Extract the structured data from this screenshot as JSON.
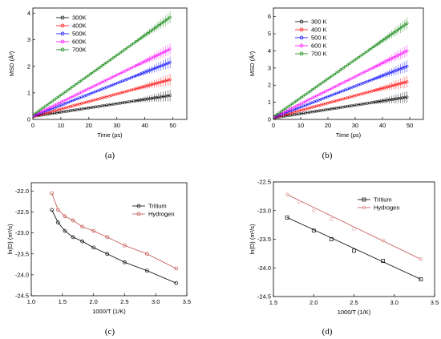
{
  "chart_data": [
    {
      "type": "line",
      "panel": "(a)",
      "xlabel": "Time (ps)",
      "ylabel": "MSD (Å²)",
      "xlim": [
        0,
        55
      ],
      "ylim": [
        0,
        4.2
      ],
      "xticks": [
        0,
        10,
        20,
        30,
        40,
        50
      ],
      "yticks": [
        0,
        1,
        2,
        3,
        4
      ],
      "legend_position": "top-left",
      "grid": false,
      "series": [
        {
          "name": "300K",
          "color": "#000000",
          "x0": 0.5,
          "x1": 49,
          "y0": 0.12,
          "y1": 0.9
        },
        {
          "name": "400K",
          "color": "#ff0000",
          "x0": 0.5,
          "x1": 49,
          "y0": 0.12,
          "y1": 1.5
        },
        {
          "name": "500K",
          "color": "#0000ff",
          "x0": 0.5,
          "x1": 49,
          "y0": 0.14,
          "y1": 2.15
        },
        {
          "name": "600K",
          "color": "#ff00ff",
          "x0": 0.5,
          "x1": 49,
          "y0": 0.16,
          "y1": 2.65
        },
        {
          "name": "700K",
          "color": "#008000",
          "x0": 0.5,
          "x1": 49,
          "y0": 0.2,
          "y1": 3.85
        }
      ]
    },
    {
      "type": "line",
      "panel": "(b)",
      "xlabel": "Time (ps)",
      "ylabel": "MSD (Å²)",
      "xlim": [
        0,
        55
      ],
      "ylim": [
        0,
        6.5
      ],
      "xticks": [
        0,
        10,
        20,
        30,
        40,
        50
      ],
      "yticks": [
        0,
        1,
        2,
        3,
        4,
        5,
        6
      ],
      "legend_position": "top-left",
      "grid": false,
      "series": [
        {
          "name": "300 K",
          "color": "#000000",
          "x0": 0.5,
          "x1": 49,
          "y0": 0.1,
          "y1": 1.3
        },
        {
          "name": "400 K",
          "color": "#ff0000",
          "x0": 0.5,
          "x1": 49,
          "y0": 0.12,
          "y1": 2.2
        },
        {
          "name": "500 K",
          "color": "#0000ff",
          "x0": 0.5,
          "x1": 49,
          "y0": 0.14,
          "y1": 3.1
        },
        {
          "name": "600 K",
          "color": "#ff00ff",
          "x0": 0.5,
          "x1": 49,
          "y0": 0.16,
          "y1": 4.0
        },
        {
          "name": "700 K",
          "color": "#008000",
          "x0": 0.5,
          "x1": 49,
          "y0": 0.2,
          "y1": 5.6
        }
      ]
    },
    {
      "type": "line",
      "panel": "(c)",
      "xlabel": "1000/T (1/K)",
      "ylabel": "ln(D) (m²/s)",
      "xlim": [
        1.0,
        3.5
      ],
      "ylim": [
        -24.5,
        -21.8
      ],
      "xticks": [
        1.0,
        1.5,
        2.0,
        2.5,
        3.0,
        3.5
      ],
      "xtick_labels": [
        "1.0",
        "1.5",
        "2.0",
        "2.5",
        "3.0",
        "3.5"
      ],
      "yticks": [
        -24.5,
        -24.0,
        -23.5,
        -23.0,
        -22.5,
        -22.0
      ],
      "ytick_labels": [
        "-24.5",
        "-24.0",
        "-23.5",
        "-23.0",
        "-22.5",
        "-22.0"
      ],
      "legend_position": "top-right",
      "grid": false,
      "series": [
        {
          "name": "Tritium",
          "color": "#000000",
          "marker": "circle",
          "x": [
            1.33,
            1.43,
            1.54,
            1.67,
            1.82,
            2.0,
            2.22,
            2.5,
            2.86,
            3.33
          ],
          "y": [
            -22.45,
            -22.75,
            -22.95,
            -23.1,
            -23.2,
            -23.35,
            -23.5,
            -23.7,
            -23.9,
            -24.2
          ]
        },
        {
          "name": "Hydrogen",
          "color": "#c0504d",
          "marker": "circle",
          "x": [
            1.33,
            1.43,
            1.54,
            1.67,
            1.82,
            2.0,
            2.22,
            2.5,
            2.86,
            3.33
          ],
          "y": [
            -22.05,
            -22.45,
            -22.6,
            -22.7,
            -22.85,
            -22.95,
            -23.1,
            -23.3,
            -23.5,
            -23.85
          ]
        }
      ]
    },
    {
      "type": "scatter",
      "panel": "(d)",
      "xlabel": "1000/T (1/K)",
      "ylabel": "ln(D) (m²/s)",
      "xlim": [
        1.5,
        3.5
      ],
      "ylim": [
        -24.5,
        -22.5
      ],
      "xticks": [
        1.5,
        2.0,
        2.5,
        3.0,
        3.5
      ],
      "xtick_labels": [
        "1.5",
        "2.0",
        "2.5",
        "3.0",
        "3.5"
      ],
      "yticks": [
        -24.5,
        -24.0,
        -23.5,
        -23.0,
        -22.5
      ],
      "ytick_labels": [
        "-24.5",
        "-24.0",
        "-23.5",
        "-23.0",
        "-22.5"
      ],
      "legend_position": "top-right",
      "grid": false,
      "series": [
        {
          "name": "Tritium",
          "color": "#000000",
          "marker": "square",
          "x": [
            1.67,
            2.0,
            2.22,
            2.5,
            2.86,
            3.33
          ],
          "y": [
            -23.12,
            -23.35,
            -23.5,
            -23.7,
            -23.88,
            -24.2
          ],
          "fit": [
            [
              1.67,
              -23.12
            ],
            [
              3.33,
              -24.2
            ]
          ]
        },
        {
          "name": "Hydrogen",
          "color": "#e8a0a0",
          "fitcolor": "#c0504d",
          "marker": "circle",
          "x": [
            1.67,
            1.82,
            2.0,
            2.22,
            2.5,
            2.86,
            3.33
          ],
          "y": [
            -22.72,
            -22.85,
            -23.0,
            -23.15,
            -23.32,
            -23.52,
            -23.85
          ],
          "fit": [
            [
              1.67,
              -22.72
            ],
            [
              3.33,
              -23.85
            ]
          ]
        }
      ]
    }
  ],
  "captions": [
    "(a)",
    "(b)",
    "(c)",
    "(d)"
  ]
}
